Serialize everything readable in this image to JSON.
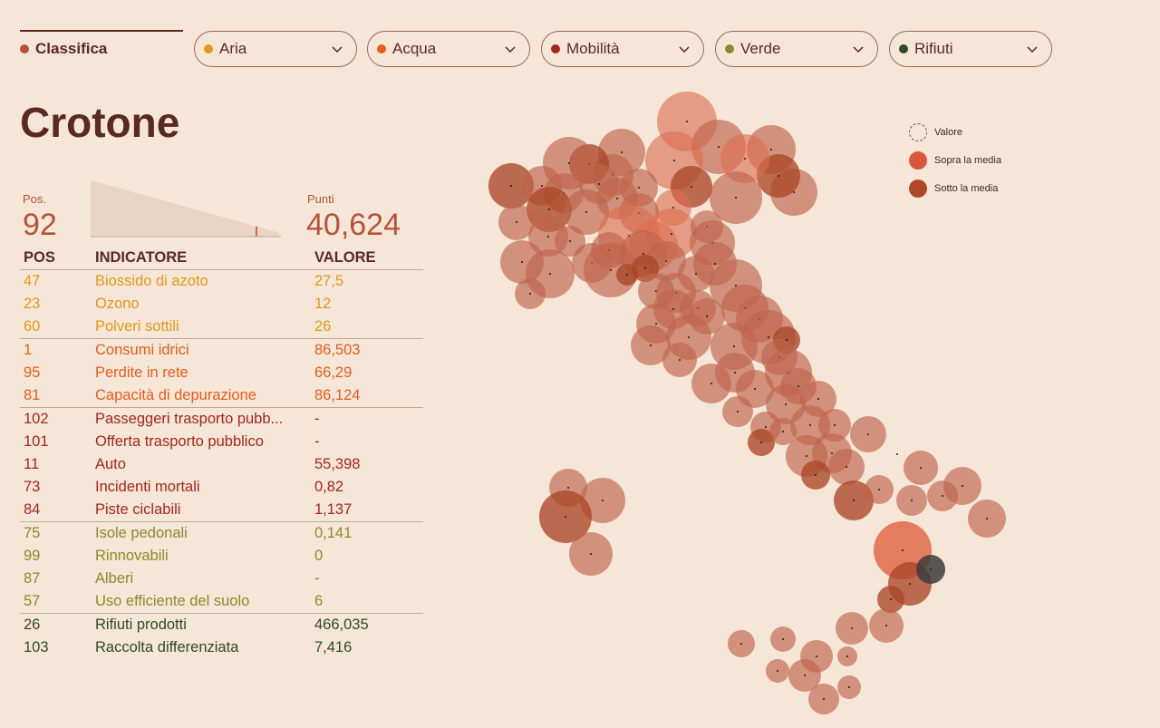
{
  "tabs": [
    {
      "label": "Classifica",
      "color": "#b3543a"
    },
    {
      "label": "Aria",
      "color": "#e09a1a"
    },
    {
      "label": "Acqua",
      "color": "#e35d1c"
    },
    {
      "label": "Mobilità",
      "color": "#a3261e"
    },
    {
      "label": "Verde",
      "color": "#8c8a2a"
    },
    {
      "label": "Rifiuti",
      "color": "#2f4a22"
    }
  ],
  "city": "Crotone",
  "position": {
    "label": "Pos.",
    "value": "92"
  },
  "score": {
    "label": "Punti",
    "value": "40,624"
  },
  "table": {
    "headers": [
      "POS",
      "INDICATORE",
      "VALORE"
    ],
    "rows": [
      {
        "pos": "47",
        "name": "Biossido di azoto",
        "value": "27,5",
        "group": "aria"
      },
      {
        "pos": "23",
        "name": "Ozono",
        "value": "12",
        "group": "aria"
      },
      {
        "pos": "60",
        "name": "Polveri sottili",
        "value": "26",
        "group": "aria"
      },
      {
        "pos": "1",
        "name": "Consumi idrici",
        "value": "86,503",
        "group": "acqua"
      },
      {
        "pos": "95",
        "name": "Perdite in rete",
        "value": "66,29",
        "group": "acqua"
      },
      {
        "pos": "81",
        "name": "Capacità di depurazione",
        "value": "86,124",
        "group": "acqua"
      },
      {
        "pos": "102",
        "name": "Passeggeri trasporto pubb...",
        "value": "-",
        "group": "mobilita"
      },
      {
        "pos": "101",
        "name": "Offerta trasporto pubblico",
        "value": "-",
        "group": "mobilita"
      },
      {
        "pos": "11",
        "name": "Auto",
        "value": "55,398",
        "group": "mobilita"
      },
      {
        "pos": "73",
        "name": "Incidenti mortali",
        "value": "0,82",
        "group": "mobilita"
      },
      {
        "pos": "84",
        "name": "Piste ciclabili",
        "value": "1,137",
        "group": "mobilita"
      },
      {
        "pos": "75",
        "name": "Isole pedonali",
        "value": "0,141",
        "group": "verde"
      },
      {
        "pos": "99",
        "name": "Rinnovabili",
        "value": "0",
        "group": "verde"
      },
      {
        "pos": "87",
        "name": "Alberi",
        "value": "-",
        "group": "verde"
      },
      {
        "pos": "57",
        "name": "Uso efficiente del suolo",
        "value": "6",
        "group": "verde"
      },
      {
        "pos": "26",
        "name": "Rifiuti prodotti",
        "value": "466,035",
        "group": "rifiuti"
      },
      {
        "pos": "103",
        "name": "Raccolta differenziata",
        "value": "7,416",
        "group": "rifiuti"
      }
    ]
  },
  "group_colors": {
    "aria": "#e09a1a",
    "acqua": "#e35d1c",
    "mobilita": "#a3261e",
    "verde": "#8c8a2a",
    "rifiuti": "#2f4a22"
  },
  "legend": [
    {
      "label": "Valore",
      "style": "dashed"
    },
    {
      "label": "Sopra la media",
      "color": "#d9573a"
    },
    {
      "label": "Sotto la media",
      "color": "#b0482a"
    }
  ]
}
